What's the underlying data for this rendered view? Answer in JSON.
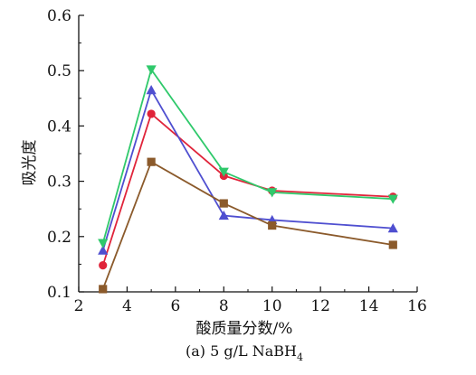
{
  "chart_data": {
    "type": "line",
    "title": "",
    "caption": "(a) 5 g/L NaBH",
    "caption_sub": "4",
    "xlabel": "酸质量分数/%",
    "ylabel": "吸光度",
    "xlim": [
      2,
      16
    ],
    "ylim": [
      0.1,
      0.6
    ],
    "xticks": [
      "2",
      "4",
      "6",
      "8",
      "10",
      "12",
      "14",
      "16"
    ],
    "yticks": [
      "0.1",
      "0.2",
      "0.3",
      "0.4",
      "0.5",
      "0.6"
    ],
    "x": [
      3,
      5,
      8,
      10,
      15
    ],
    "grid": false,
    "series": [
      {
        "marker": "circle",
        "color": "#e0243a",
        "values": [
          0.148,
          0.422,
          0.31,
          0.283,
          0.272
        ]
      },
      {
        "marker": "triangle-up",
        "color": "#4f4fd0",
        "values": [
          0.175,
          0.465,
          0.238,
          0.23,
          0.215
        ]
      },
      {
        "marker": "triangle-down",
        "color": "#2fc96b",
        "values": [
          0.188,
          0.502,
          0.317,
          0.28,
          0.268
        ]
      },
      {
        "marker": "square",
        "color": "#8b5a2b",
        "values": [
          0.105,
          0.335,
          0.26,
          0.22,
          0.185
        ]
      }
    ]
  }
}
